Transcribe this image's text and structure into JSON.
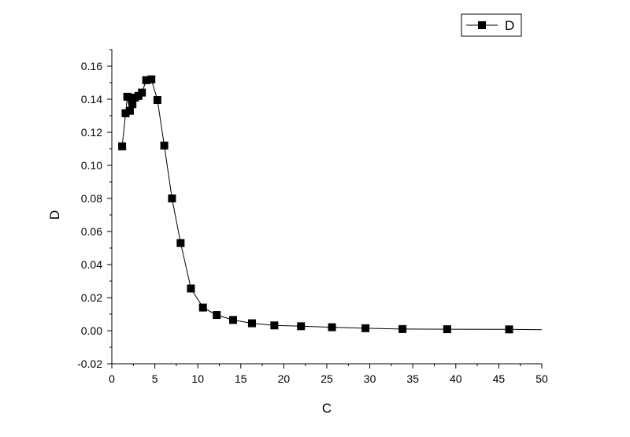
{
  "chart_data": {
    "type": "line",
    "xlabel": "C",
    "ylabel": "D",
    "xlim": [
      0,
      50
    ],
    "ylim": [
      -0.02,
      0.17
    ],
    "x_ticks": [
      0,
      5,
      10,
      15,
      20,
      25,
      30,
      35,
      40,
      45,
      50
    ],
    "y_ticks": [
      -0.02,
      0.0,
      0.02,
      0.04,
      0.06,
      0.08,
      0.1,
      0.12,
      0.14,
      0.16
    ],
    "x_tick_labels": [
      "0",
      "5",
      "10",
      "15",
      "20",
      "25",
      "30",
      "35",
      "40",
      "45",
      "50"
    ],
    "y_tick_labels": [
      "-0.02",
      "0.00",
      "0.02",
      "0.04",
      "0.06",
      "0.08",
      "0.10",
      "0.12",
      "0.14",
      "0.16"
    ],
    "grid": false,
    "legend": "top-right",
    "series": [
      {
        "name": "D",
        "marker": "square",
        "color": "#000000",
        "points": [
          [
            1.2,
            0.1115
          ],
          [
            1.6,
            0.1315
          ],
          [
            1.8,
            0.1415
          ],
          [
            2.1,
            0.133
          ],
          [
            2.4,
            0.137
          ],
          [
            2.7,
            0.141
          ],
          [
            3.1,
            0.142
          ],
          [
            3.5,
            0.144
          ],
          [
            4.0,
            0.1515
          ],
          [
            4.6,
            0.152
          ],
          [
            5.3,
            0.1395
          ],
          [
            6.1,
            0.112
          ],
          [
            7.0,
            0.08
          ],
          [
            8.0,
            0.053
          ],
          [
            9.2,
            0.0255
          ],
          [
            10.6,
            0.014
          ],
          [
            12.2,
            0.0095
          ],
          [
            14.1,
            0.0065
          ],
          [
            16.3,
            0.0045
          ],
          [
            18.9,
            0.0032
          ],
          [
            22.0,
            0.0027
          ],
          [
            25.6,
            0.0021
          ],
          [
            29.5,
            0.0015
          ],
          [
            33.8,
            0.001
          ],
          [
            39.0,
            0.0009
          ],
          [
            46.2,
            0.0008
          ],
          [
            50.0,
            0.0006
          ]
        ],
        "marked_points": 26
      }
    ]
  }
}
